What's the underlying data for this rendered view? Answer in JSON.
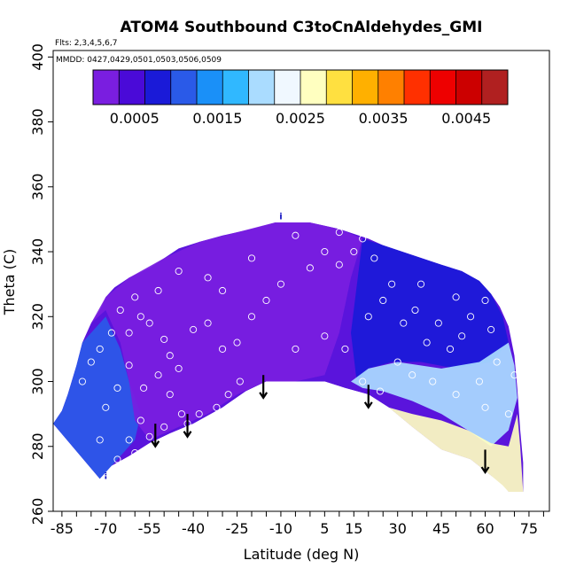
{
  "chart_data": {
    "type": "heatmap",
    "title": "ATOM4 Southbound C3toCnAldehydes_GMI",
    "flights_label": "Flts: 2,3,4,5,6,7",
    "dates_label": "MMDD: 0427,0429,0501,0503,0506,0509",
    "xlabel": "Latitude (deg N)",
    "ylabel": "Theta (C)",
    "xlim": [
      -88,
      82
    ],
    "ylim": [
      260,
      402
    ],
    "x_tick_labels": [
      -85,
      -70,
      -55,
      -40,
      -25,
      -10,
      5,
      15,
      30,
      45,
      60,
      75
    ],
    "x_minor_ticks": [
      -85,
      -80,
      -75,
      -70,
      -65,
      -60,
      -55,
      -50,
      -45,
      -40,
      -35,
      -30,
      -25,
      -20,
      -15,
      -10,
      -5,
      0,
      5,
      10,
      15,
      20,
      25,
      30,
      35,
      40,
      45,
      50,
      55,
      60,
      65,
      70,
      75,
      80
    ],
    "y_tick_labels": [
      260,
      280,
      300,
      320,
      340,
      360,
      380,
      400
    ],
    "colorbar": {
      "min": 0.0,
      "max": 0.005,
      "tick_labels": [
        "0.0005",
        "0.0015",
        "0.0025",
        "0.0035",
        "0.0045"
      ],
      "tick_values": [
        0.0005,
        0.0015,
        0.0025,
        0.0035,
        0.0045
      ],
      "colors": [
        "#7a1ee0",
        "#4a0ad8",
        "#1a1ad8",
        "#2a5ae8",
        "#1a90f8",
        "#30b8ff",
        "#aadcff",
        "#f0f8ff",
        "#ffffc0",
        "#ffe040",
        "#ffb000",
        "#ff8000",
        "#ff3000",
        "#ee0000",
        "#cc0000",
        "#b02020"
      ]
    },
    "upper_boundary": [
      [
        -88,
        287
      ],
      [
        -85,
        291
      ],
      [
        -83,
        296
      ],
      [
        -80,
        305
      ],
      [
        -78,
        312
      ],
      [
        -75,
        318
      ],
      [
        -72,
        322
      ],
      [
        -70,
        326
      ],
      [
        -67,
        329
      ],
      [
        -62,
        332
      ],
      [
        -55,
        335
      ],
      [
        -50,
        338
      ],
      [
        -45,
        341
      ],
      [
        -38,
        343
      ],
      [
        -30,
        345
      ],
      [
        -20,
        347
      ],
      [
        -12,
        349
      ],
      [
        0,
        349
      ],
      [
        10,
        347
      ],
      [
        20,
        344
      ],
      [
        25,
        342
      ],
      [
        35,
        339
      ],
      [
        45,
        336
      ],
      [
        52,
        334
      ],
      [
        58,
        331
      ],
      [
        62,
        327
      ],
      [
        65,
        323
      ],
      [
        68,
        317
      ],
      [
        70,
        308
      ],
      [
        71,
        298
      ],
      [
        72,
        285
      ],
      [
        73,
        275
      ],
      [
        73,
        266
      ]
    ],
    "lower_boundary": [
      [
        -72,
        270
      ],
      [
        -68,
        274
      ],
      [
        -62,
        277
      ],
      [
        -55,
        281
      ],
      [
        -48,
        284
      ],
      [
        -40,
        287
      ],
      [
        -30,
        292
      ],
      [
        -22,
        297
      ],
      [
        -15,
        300
      ],
      [
        -10,
        300
      ],
      [
        0,
        300
      ],
      [
        5,
        300
      ],
      [
        12,
        298
      ],
      [
        20,
        296
      ],
      [
        27,
        292
      ],
      [
        35,
        286
      ],
      [
        45,
        279
      ],
      [
        55,
        276
      ],
      [
        62,
        271
      ],
      [
        66,
        268
      ],
      [
        68,
        266
      ],
      [
        73,
        266
      ]
    ],
    "regions": [
      {
        "name": "south-lower",
        "value": 0.001,
        "points": [
          [
            -88,
            287
          ],
          [
            -85,
            291
          ],
          [
            -83,
            296
          ],
          [
            -80,
            305
          ],
          [
            -78,
            312
          ],
          [
            -70,
            320
          ],
          [
            -65,
            310
          ],
          [
            -62,
            300
          ],
          [
            -58,
            290
          ],
          [
            -60,
            282
          ],
          [
            -66,
            276
          ],
          [
            -72,
            270
          ]
        ]
      },
      {
        "name": "upper-mid",
        "value": 0.0003,
        "points": [
          [
            -75,
            318
          ],
          [
            -70,
            326
          ],
          [
            -62,
            332
          ],
          [
            -50,
            338
          ],
          [
            -38,
            343
          ],
          [
            -25,
            346
          ],
          [
            -12,
            349
          ],
          [
            0,
            349
          ],
          [
            10,
            347
          ],
          [
            18,
            344
          ],
          [
            14,
            332
          ],
          [
            10,
            315
          ],
          [
            5,
            302
          ],
          [
            -5,
            300
          ],
          [
            -15,
            300
          ],
          [
            -25,
            296
          ],
          [
            -35,
            290
          ],
          [
            -45,
            286
          ],
          [
            -55,
            282
          ],
          [
            -60,
            288
          ],
          [
            -62,
            300
          ],
          [
            -65,
            312
          ],
          [
            -70,
            322
          ]
        ]
      },
      {
        "name": "north-upper",
        "value": 0.0009,
        "points": [
          [
            18,
            344
          ],
          [
            25,
            342
          ],
          [
            35,
            339
          ],
          [
            45,
            336
          ],
          [
            52,
            334
          ],
          [
            58,
            331
          ],
          [
            62,
            327
          ],
          [
            66,
            320
          ],
          [
            68,
            312
          ],
          [
            62,
            306
          ],
          [
            50,
            304
          ],
          [
            38,
            306
          ],
          [
            28,
            306
          ],
          [
            20,
            304
          ],
          [
            16,
            300
          ],
          [
            14,
            315
          ]
        ]
      },
      {
        "name": "north-lower",
        "value": 0.0021,
        "points": [
          [
            14,
            300
          ],
          [
            20,
            304
          ],
          [
            30,
            306
          ],
          [
            45,
            304
          ],
          [
            58,
            306
          ],
          [
            68,
            312
          ],
          [
            70,
            305
          ],
          [
            71,
            295
          ],
          [
            68,
            285
          ],
          [
            62,
            280
          ],
          [
            54,
            285
          ],
          [
            45,
            290
          ],
          [
            35,
            294
          ],
          [
            25,
            297
          ],
          [
            18,
            298
          ]
        ]
      },
      {
        "name": "north-bottom",
        "value": 0.0026,
        "points": [
          [
            27,
            292
          ],
          [
            35,
            290
          ],
          [
            45,
            288
          ],
          [
            54,
            285
          ],
          [
            62,
            281
          ],
          [
            68,
            280
          ],
          [
            71,
            290
          ],
          [
            72,
            280
          ],
          [
            73,
            266
          ],
          [
            68,
            266
          ],
          [
            62,
            271
          ],
          [
            55,
            276
          ],
          [
            45,
            279
          ],
          [
            35,
            286
          ]
        ]
      }
    ],
    "observations": [
      [
        -72,
        310
      ],
      [
        -68,
        315
      ],
      [
        -65,
        322
      ],
      [
        -60,
        326
      ],
      [
        -58,
        320
      ],
      [
        -55,
        318
      ],
      [
        -50,
        313
      ],
      [
        -48,
        308
      ],
      [
        -45,
        304
      ],
      [
        -62,
        305
      ],
      [
        -66,
        298
      ],
      [
        -70,
        292
      ],
      [
        -57,
        298
      ],
      [
        -52,
        302
      ],
      [
        -48,
        296
      ],
      [
        -44,
        290
      ],
      [
        -58,
        288
      ],
      [
        -62,
        282
      ],
      [
        -66,
        276
      ],
      [
        -40,
        316
      ],
      [
        -35,
        318
      ],
      [
        -30,
        310
      ],
      [
        -25,
        312
      ],
      [
        -20,
        320
      ],
      [
        -15,
        325
      ],
      [
        -30,
        328
      ],
      [
        -10,
        330
      ],
      [
        0,
        335
      ],
      [
        5,
        340
      ],
      [
        10,
        336
      ],
      [
        15,
        340
      ],
      [
        18,
        344
      ],
      [
        20,
        320
      ],
      [
        25,
        325
      ],
      [
        28,
        330
      ],
      [
        32,
        318
      ],
      [
        36,
        322
      ],
      [
        40,
        312
      ],
      [
        44,
        318
      ],
      [
        48,
        310
      ],
      [
        52,
        314
      ],
      [
        55,
        320
      ],
      [
        60,
        325
      ],
      [
        62,
        316
      ],
      [
        30,
        306
      ],
      [
        35,
        302
      ],
      [
        42,
        300
      ],
      [
        50,
        296
      ],
      [
        58,
        300
      ],
      [
        60,
        292
      ],
      [
        24,
        297
      ],
      [
        18,
        300
      ],
      [
        -24,
        300
      ],
      [
        -28,
        296
      ],
      [
        -32,
        292
      ],
      [
        -38,
        290
      ],
      [
        -42,
        287
      ],
      [
        -50,
        286
      ],
      [
        -55,
        283
      ],
      [
        -60,
        278
      ],
      [
        -65,
        273
      ],
      [
        -70,
        270
      ],
      [
        -72,
        282
      ],
      [
        -78,
        300
      ],
      [
        -75,
        306
      ],
      [
        -62,
        315
      ],
      [
        -52,
        328
      ],
      [
        -45,
        334
      ],
      [
        -35,
        332
      ],
      [
        -20,
        338
      ],
      [
        -5,
        345
      ],
      [
        10,
        346
      ],
      [
        22,
        338
      ],
      [
        38,
        330
      ],
      [
        50,
        326
      ],
      [
        64,
        306
      ],
      [
        70,
        302
      ],
      [
        68,
        290
      ],
      [
        5,
        314
      ],
      [
        -5,
        310
      ],
      [
        12,
        310
      ]
    ],
    "arrows": [
      {
        "lat": -53,
        "theta_top": 287,
        "theta_tip": 280
      },
      {
        "lat": -42,
        "theta_top": 290,
        "theta_tip": 283
      },
      {
        "lat": -16,
        "theta_top": 302,
        "theta_tip": 295
      },
      {
        "lat": 20,
        "theta_top": 299,
        "theta_tip": 292
      },
      {
        "lat": 60,
        "theta_top": 279,
        "theta_tip": 272
      }
    ],
    "station_marker": {
      "lat": -10,
      "theta": 350,
      "label": "i"
    },
    "station_marker_lower": {
      "lat": -70,
      "theta": 270,
      "label": "i"
    }
  }
}
